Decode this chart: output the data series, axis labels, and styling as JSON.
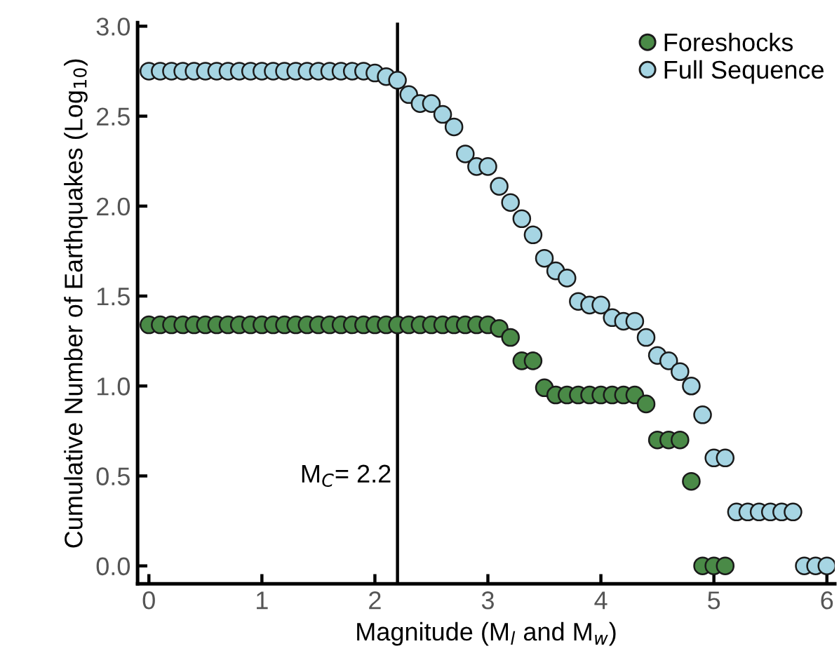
{
  "chart_data": {
    "type": "scatter",
    "xlabel": "Magnitude (M$_{l}$ and M$_{w}$)",
    "ylabel": "Cumulative Number of Earthquakes (Log$_{10}$)",
    "xlim": [
      -0.1,
      6.07
    ],
    "ylim": [
      -0.1,
      3.02
    ],
    "xticks": [
      0,
      1,
      2,
      3,
      4,
      5,
      6
    ],
    "yticks": [
      {
        "value": 0,
        "label": "0.0"
      },
      {
        "value": 0.5,
        "label": "0.5"
      },
      {
        "value": 1,
        "label": "1.0"
      },
      {
        "value": 1.5,
        "label": "1.5"
      },
      {
        "value": 2,
        "label": "2.0"
      },
      {
        "value": 2.5,
        "label": "2.5"
      },
      {
        "value": 3,
        "label": "3.0"
      }
    ],
    "grid": false,
    "legend": "top right",
    "marker": "circle",
    "ref_lines": [
      {
        "axis": "x",
        "value": 2.2,
        "label": "M$_{C}$= 2.2",
        "color": "#000000",
        "line_style": "solid"
      }
    ],
    "series": [
      {
        "name": "Foreshocks",
        "color": "#4a8a47",
        "x": [
          0,
          0.1,
          0.2,
          0.3,
          0.4,
          0.5,
          0.6,
          0.7,
          0.8,
          0.9,
          1,
          1.1,
          1.2,
          1.3,
          1.4,
          1.5,
          1.6,
          1.7,
          1.8,
          1.9,
          2,
          2.1,
          2.2,
          2.3,
          2.4,
          2.5,
          2.6,
          2.7,
          2.8,
          2.9,
          3,
          3.1,
          3.2,
          3.3,
          3.4,
          3.5,
          3.6,
          3.7,
          3.8,
          3.9,
          4,
          4.1,
          4.2,
          4.3,
          4.4,
          4.5,
          4.6,
          4.7,
          4.8,
          4.9,
          5,
          5.1
        ],
        "values": [
          1.34,
          1.34,
          1.34,
          1.34,
          1.34,
          1.34,
          1.34,
          1.34,
          1.34,
          1.34,
          1.34,
          1.34,
          1.34,
          1.34,
          1.34,
          1.34,
          1.34,
          1.34,
          1.34,
          1.34,
          1.34,
          1.34,
          1.34,
          1.34,
          1.34,
          1.34,
          1.34,
          1.34,
          1.34,
          1.34,
          1.34,
          1.32,
          1.27,
          1.14,
          1.14,
          0.99,
          0.95,
          0.95,
          0.95,
          0.95,
          0.95,
          0.95,
          0.95,
          0.95,
          0.9,
          0.7,
          0.7,
          0.7,
          0.47,
          0,
          0,
          0
        ]
      },
      {
        "name": "Full Sequence",
        "color": "#a6d5e3",
        "x": [
          0,
          0.1,
          0.2,
          0.3,
          0.4,
          0.5,
          0.6,
          0.7,
          0.8,
          0.9,
          1,
          1.1,
          1.2,
          1.3,
          1.4,
          1.5,
          1.6,
          1.7,
          1.8,
          1.9,
          2,
          2.1,
          2.2,
          2.3,
          2.4,
          2.5,
          2.6,
          2.7,
          2.8,
          2.9,
          3,
          3.1,
          3.2,
          3.3,
          3.4,
          3.5,
          3.6,
          3.7,
          3.8,
          3.9,
          4,
          4.1,
          4.2,
          4.3,
          4.4,
          4.5,
          4.6,
          4.7,
          4.8,
          4.9,
          5,
          5.1,
          5.2,
          5.3,
          5.4,
          5.5,
          5.6,
          5.7,
          5.8,
          5.9,
          6
        ],
        "values": [
          2.75,
          2.75,
          2.75,
          2.75,
          2.75,
          2.75,
          2.75,
          2.75,
          2.75,
          2.75,
          2.75,
          2.75,
          2.75,
          2.75,
          2.75,
          2.75,
          2.75,
          2.75,
          2.75,
          2.75,
          2.74,
          2.72,
          2.7,
          2.62,
          2.57,
          2.57,
          2.51,
          2.44,
          2.29,
          2.22,
          2.22,
          2.11,
          2.02,
          1.93,
          1.84,
          1.71,
          1.64,
          1.6,
          1.47,
          1.45,
          1.45,
          1.38,
          1.36,
          1.36,
          1.27,
          1.17,
          1.14,
          1.08,
          1.0,
          0.84,
          0.6,
          0.6,
          0.3,
          0.3,
          0.3,
          0.3,
          0.3,
          0.3,
          0,
          0,
          0
        ]
      }
    ]
  }
}
